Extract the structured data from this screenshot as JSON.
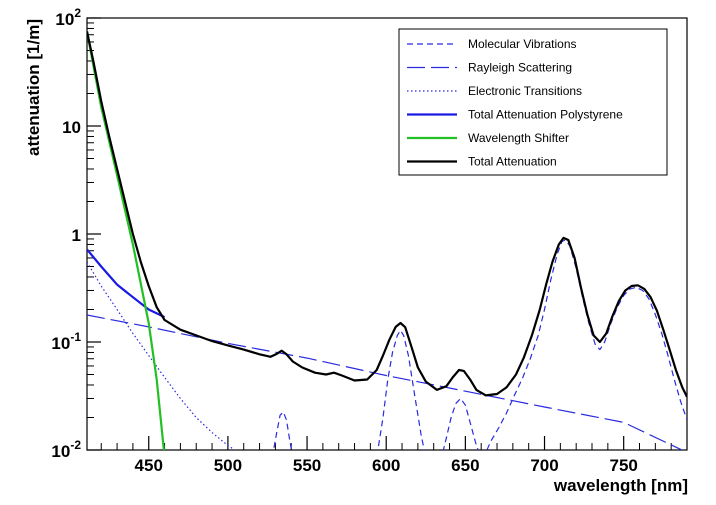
{
  "chart_data": {
    "type": "line",
    "title": "",
    "xlabel": "wavelength [nm]",
    "ylabel": "attenuation [1/m]",
    "xlim": [
      411,
      790
    ],
    "ylim": [
      0.01,
      100
    ],
    "yscale": "log",
    "grid": false,
    "legend_position": "top-right",
    "x_ticks": [
      {
        "value": 450,
        "label": "450"
      },
      {
        "value": 500,
        "label": "500"
      },
      {
        "value": 550,
        "label": "550"
      },
      {
        "value": 600,
        "label": "600"
      },
      {
        "value": 650,
        "label": "650"
      },
      {
        "value": 700,
        "label": "700"
      },
      {
        "value": 750,
        "label": "750"
      }
    ],
    "y_ticks": [
      {
        "value": 0.01,
        "base": "10",
        "exp": "-2"
      },
      {
        "value": 0.1,
        "base": "10",
        "exp": "-1"
      },
      {
        "value": 1,
        "base": "1",
        "exp": ""
      },
      {
        "value": 10,
        "base": "10",
        "exp": ""
      },
      {
        "value": 100,
        "base": "10",
        "exp": "2"
      }
    ],
    "series": [
      {
        "name": "Molecular Vibrations",
        "color": "#2a2ae0",
        "style": "short-dash",
        "points": [
          [
            528,
            0.0085
          ],
          [
            531,
            0.015
          ],
          [
            533,
            0.021
          ],
          [
            535,
            0.0225
          ],
          [
            537,
            0.019
          ],
          [
            539,
            0.0125
          ],
          [
            541,
            0.0085
          ],
          [
            594,
            0.0085
          ],
          [
            598,
            0.02
          ],
          [
            601,
            0.045
          ],
          [
            604,
            0.08
          ],
          [
            607,
            0.115
          ],
          [
            609,
            0.128
          ],
          [
            611,
            0.115
          ],
          [
            614,
            0.075
          ],
          [
            618,
            0.032
          ],
          [
            622,
            0.014
          ],
          [
            625,
            0.0085
          ],
          [
            635,
            0.0085
          ],
          [
            638,
            0.013
          ],
          [
            641,
            0.02
          ],
          [
            644,
            0.027
          ],
          [
            647,
            0.03
          ],
          [
            650,
            0.026
          ],
          [
            653,
            0.018
          ],
          [
            657,
            0.011
          ],
          [
            660,
            0.0085
          ],
          [
            663,
            0.0095
          ],
          [
            666,
            0.012
          ],
          [
            671,
            0.016
          ],
          [
            676,
            0.022
          ],
          [
            681,
            0.032
          ],
          [
            686,
            0.046
          ],
          [
            691,
            0.07
          ],
          [
            696,
            0.115
          ],
          [
            700,
            0.2
          ],
          [
            704,
            0.38
          ],
          [
            708,
            0.65
          ],
          [
            711,
            0.85
          ],
          [
            713,
            0.88
          ],
          [
            716,
            0.78
          ],
          [
            720,
            0.48
          ],
          [
            724,
            0.26
          ],
          [
            728,
            0.15
          ],
          [
            732,
            0.095
          ],
          [
            735,
            0.085
          ],
          [
            738,
            0.1
          ],
          [
            742,
            0.15
          ],
          [
            746,
            0.21
          ],
          [
            750,
            0.27
          ],
          [
            754,
            0.31
          ],
          [
            758,
            0.32
          ],
          [
            762,
            0.3
          ],
          [
            766,
            0.25
          ],
          [
            770,
            0.18
          ],
          [
            774,
            0.12
          ],
          [
            778,
            0.075
          ],
          [
            782,
            0.045
          ],
          [
            786,
            0.028
          ],
          [
            790,
            0.019
          ]
        ]
      },
      {
        "name": "Rayleigh Scattering",
        "color": "#2a2ae0",
        "style": "long-dash",
        "points": [
          [
            411,
            0.178
          ],
          [
            450,
            0.138
          ],
          [
            500,
            0.097
          ],
          [
            550,
            0.071
          ],
          [
            600,
            0.049
          ],
          [
            650,
            0.035
          ],
          [
            700,
            0.025
          ],
          [
            750,
            0.018
          ],
          [
            790,
            0.0095
          ]
        ]
      },
      {
        "name": "Electronic Transitions",
        "color": "#2a2ae0",
        "style": "dotted",
        "points": [
          [
            411,
            0.55
          ],
          [
            420,
            0.33
          ],
          [
            430,
            0.2
          ],
          [
            440,
            0.12
          ],
          [
            450,
            0.075
          ],
          [
            460,
            0.047
          ],
          [
            470,
            0.03
          ],
          [
            480,
            0.02
          ],
          [
            490,
            0.0145
          ],
          [
            500,
            0.011
          ],
          [
            508,
            0.0092
          ]
        ]
      },
      {
        "name": "Total Attenuation Polystyrene",
        "color": "#1a1ae6",
        "style": "solid",
        "points": [
          [
            411,
            0.72
          ],
          [
            420,
            0.5
          ],
          [
            430,
            0.34
          ],
          [
            440,
            0.26
          ],
          [
            450,
            0.2
          ],
          [
            460,
            0.17
          ]
        ]
      },
      {
        "name": "Wavelength Shifter",
        "color": "#22c022",
        "style": "solid",
        "points": [
          [
            411,
            75
          ],
          [
            420,
            15
          ],
          [
            430,
            3.5
          ],
          [
            440,
            0.8
          ],
          [
            450,
            0.15
          ],
          [
            455,
            0.045
          ],
          [
            459,
            0.012
          ],
          [
            460,
            0.0085
          ]
        ]
      },
      {
        "name": "Total Attenuation",
        "color": "#000000",
        "style": "solid",
        "points": [
          [
            411,
            75
          ],
          [
            415,
            40
          ],
          [
            420,
            17
          ],
          [
            425,
            8
          ],
          [
            430,
            4
          ],
          [
            435,
            2
          ],
          [
            440,
            1
          ],
          [
            445,
            0.55
          ],
          [
            450,
            0.33
          ],
          [
            455,
            0.21
          ],
          [
            460,
            0.16
          ],
          [
            470,
            0.13
          ],
          [
            480,
            0.115
          ],
          [
            490,
            0.102
          ],
          [
            500,
            0.093
          ],
          [
            510,
            0.085
          ],
          [
            520,
            0.077
          ],
          [
            527,
            0.073
          ],
          [
            531,
            0.078
          ],
          [
            534,
            0.083
          ],
          [
            537,
            0.077
          ],
          [
            541,
            0.066
          ],
          [
            547,
            0.058
          ],
          [
            555,
            0.052
          ],
          [
            562,
            0.05
          ],
          [
            567,
            0.052
          ],
          [
            572,
            0.049
          ],
          [
            580,
            0.044
          ],
          [
            588,
            0.045
          ],
          [
            594,
            0.055
          ],
          [
            598,
            0.075
          ],
          [
            602,
            0.105
          ],
          [
            606,
            0.138
          ],
          [
            609,
            0.15
          ],
          [
            612,
            0.137
          ],
          [
            616,
            0.09
          ],
          [
            620,
            0.058
          ],
          [
            625,
            0.043
          ],
          [
            632,
            0.036
          ],
          [
            638,
            0.039
          ],
          [
            642,
            0.047
          ],
          [
            646,
            0.055
          ],
          [
            649,
            0.054
          ],
          [
            653,
            0.045
          ],
          [
            657,
            0.036
          ],
          [
            663,
            0.032
          ],
          [
            670,
            0.033
          ],
          [
            676,
            0.038
          ],
          [
            682,
            0.05
          ],
          [
            687,
            0.072
          ],
          [
            692,
            0.115
          ],
          [
            697,
            0.2
          ],
          [
            701,
            0.34
          ],
          [
            705,
            0.55
          ],
          [
            709,
            0.8
          ],
          [
            712,
            0.92
          ],
          [
            715,
            0.88
          ],
          [
            719,
            0.6
          ],
          [
            723,
            0.32
          ],
          [
            727,
            0.18
          ],
          [
            731,
            0.115
          ],
          [
            735,
            0.1
          ],
          [
            739,
            0.12
          ],
          [
            743,
            0.175
          ],
          [
            747,
            0.24
          ],
          [
            751,
            0.3
          ],
          [
            755,
            0.33
          ],
          [
            759,
            0.335
          ],
          [
            763,
            0.31
          ],
          [
            767,
            0.26
          ],
          [
            771,
            0.195
          ],
          [
            775,
            0.13
          ],
          [
            779,
            0.085
          ],
          [
            783,
            0.055
          ],
          [
            787,
            0.038
          ],
          [
            790,
            0.031
          ]
        ]
      }
    ]
  }
}
